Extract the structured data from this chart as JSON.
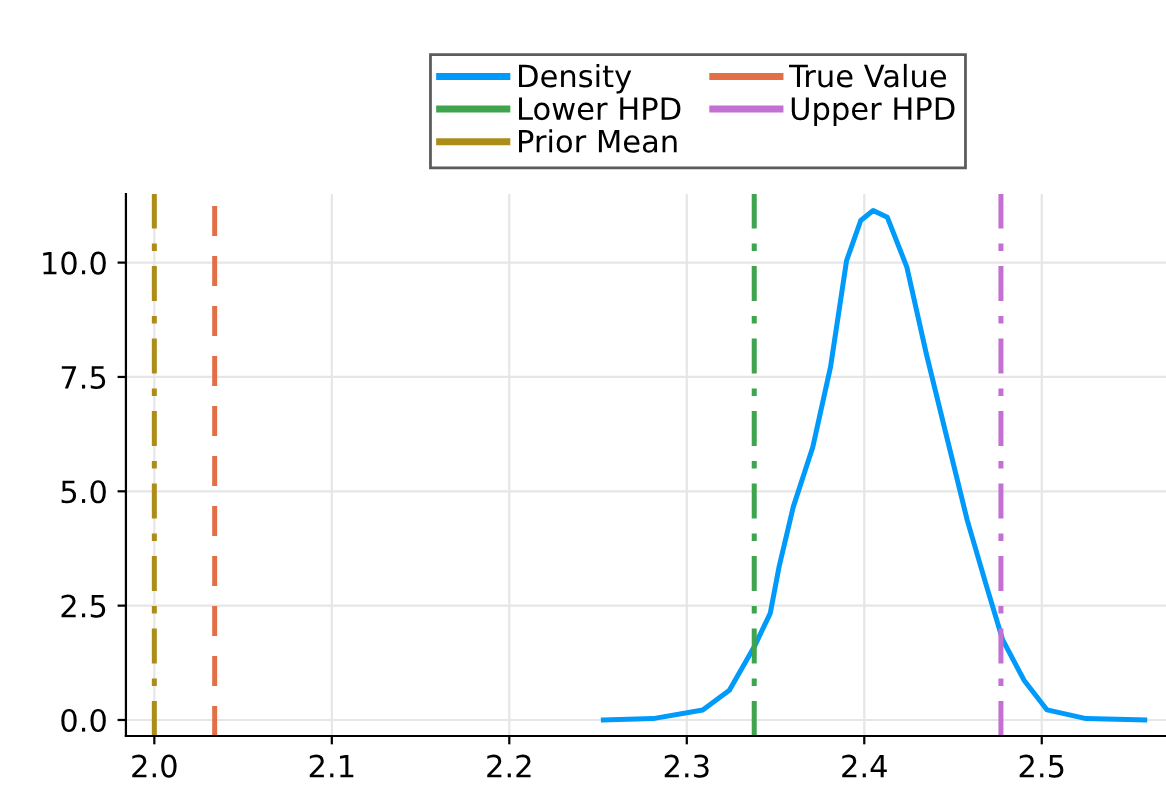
{
  "chart_data": {
    "type": "line",
    "x": [
      2.253,
      2.281,
      2.309,
      2.324,
      2.338,
      2.347,
      2.352,
      2.36,
      2.371,
      2.381,
      2.39,
      2.398,
      2.405,
      2.413,
      2.424,
      2.435,
      2.446,
      2.458,
      2.469,
      2.478,
      2.49,
      2.503,
      2.525,
      2.558
    ],
    "series": [
      {
        "name": "Density",
        "color": "#009afa",
        "values": [
          0.0,
          0.03,
          0.22,
          0.65,
          1.6,
          2.33,
          3.35,
          4.66,
          5.97,
          7.72,
          10.04,
          10.92,
          11.14,
          10.99,
          9.9,
          8.0,
          6.26,
          4.37,
          2.91,
          1.75,
          0.87,
          0.22,
          0.03,
          0.0
        ]
      }
    ],
    "ref_lines": [
      {
        "axis": "x",
        "value": 2.338,
        "label": "Lower HPD",
        "color": "#3ea44e",
        "line_style": "dashdot"
      },
      {
        "axis": "x",
        "value": 2.0,
        "label": "Prior Mean",
        "color": "#ac8d18",
        "line_style": "dashdot"
      },
      {
        "axis": "x",
        "value": 2.034,
        "label": "True Value",
        "color": "#e36f47",
        "line_style": "dashed"
      },
      {
        "axis": "x",
        "value": 2.477,
        "label": "Upper HPD",
        "color": "#c271d2",
        "line_style": "dashdot"
      }
    ],
    "xlim": [
      1.984,
      2.57
    ],
    "xticks": [
      {
        "value": 2.0,
        "label": "2.0"
      },
      2.1,
      2.2,
      2.3,
      2.4,
      2.5
    ],
    "ylim": [
      -0.35,
      11.5
    ],
    "yticks": [
      {
        "value": 0,
        "label": "0.0"
      },
      2.5,
      {
        "value": 5,
        "label": "5.0"
      },
      7.5,
      {
        "value": 10,
        "label": "10.0"
      }
    ],
    "grid": true,
    "legend": "top"
  }
}
